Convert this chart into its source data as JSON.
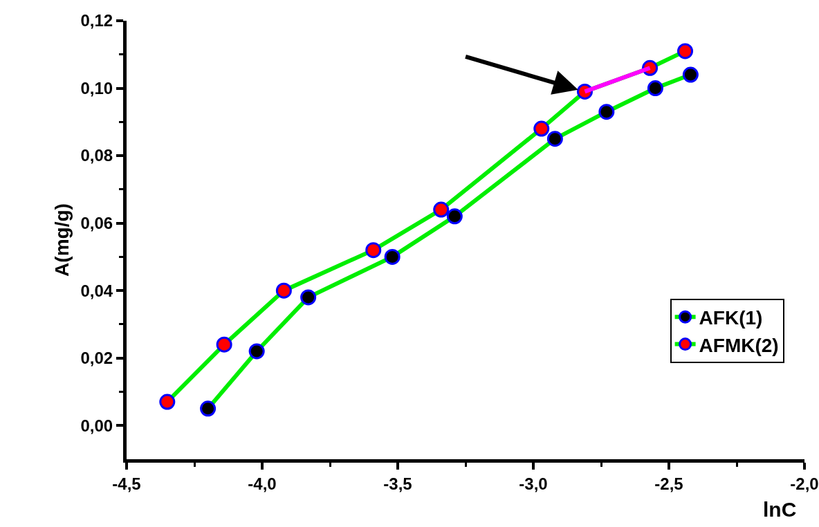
{
  "chart_data": {
    "type": "line",
    "xlabel": "lnC",
    "ylabel": "A(mg/g)",
    "xlim": [
      -4.5,
      -2.0
    ],
    "xticks": [
      {
        "value": -4.5,
        "label": "-4,5"
      },
      {
        "value": -4.25,
        "label": null
      },
      {
        "value": -4.0,
        "label": "-4,0"
      },
      {
        "value": -3.75,
        "label": null
      },
      {
        "value": -3.5,
        "label": "-3,5"
      },
      {
        "value": -3.25,
        "label": null
      },
      {
        "value": -3.0,
        "label": "-3,0"
      },
      {
        "value": -2.75,
        "label": null
      },
      {
        "value": -2.5,
        "label": "-2,5"
      },
      {
        "value": -2.25,
        "label": null
      },
      {
        "value": -2.0,
        "label": "-2,0"
      }
    ],
    "ylim": [
      -0.01,
      0.12
    ],
    "yticks": [
      {
        "value": 0.0,
        "label": "0,00"
      },
      {
        "value": 0.01,
        "label": null
      },
      {
        "value": 0.02,
        "label": "0,02"
      },
      {
        "value": 0.03,
        "label": null
      },
      {
        "value": 0.04,
        "label": "0,04"
      },
      {
        "value": 0.05,
        "label": null
      },
      {
        "value": 0.06,
        "label": "0,06"
      },
      {
        "value": 0.07,
        "label": null
      },
      {
        "value": 0.08,
        "label": "0,08"
      },
      {
        "value": 0.09,
        "label": null
      },
      {
        "value": 0.1,
        "label": "0,10"
      },
      {
        "value": 0.11,
        "label": null
      },
      {
        "value": 0.12,
        "label": "0,12"
      }
    ],
    "legend": "bottom right",
    "marker": "circle",
    "line_style": "solid",
    "series": [
      {
        "name": "AFK(1)",
        "color": "#00ee00",
        "colors": [
          "#000000",
          "#000000",
          "#000000",
          "#000000",
          "#000000",
          "#000000",
          "#000000",
          "#000000",
          "#000000"
        ],
        "x": [
          -4.2,
          -4.02,
          -3.83,
          -3.52,
          -3.29,
          -2.92,
          -2.73,
          -2.55,
          -2.42
        ],
        "values": [
          0.005,
          0.022,
          0.038,
          0.05,
          0.062,
          0.085,
          0.093,
          0.1,
          0.104
        ]
      },
      {
        "name": "AFMK(2)",
        "color": "#00ee00",
        "colors": [
          "#ff0000",
          "#ff0000",
          "#ff0000",
          "#ff0000",
          "#ff0000",
          "#ff0000",
          "#ff0000",
          "#ff0000",
          "#ff0000"
        ],
        "x": [
          -4.35,
          -4.14,
          -3.92,
          -3.59,
          -3.34,
          -2.97,
          -2.81,
          -2.57,
          -2.44
        ],
        "values": [
          0.007,
          0.024,
          0.04,
          0.052,
          0.064,
          0.088,
          0.099,
          0.106,
          0.111
        ]
      },
      {
        "color": "#ff00ff",
        "marker": "none",
        "x": [
          -2.81,
          -2.57
        ],
        "values": [
          0.099,
          0.106
        ]
      }
    ]
  }
}
